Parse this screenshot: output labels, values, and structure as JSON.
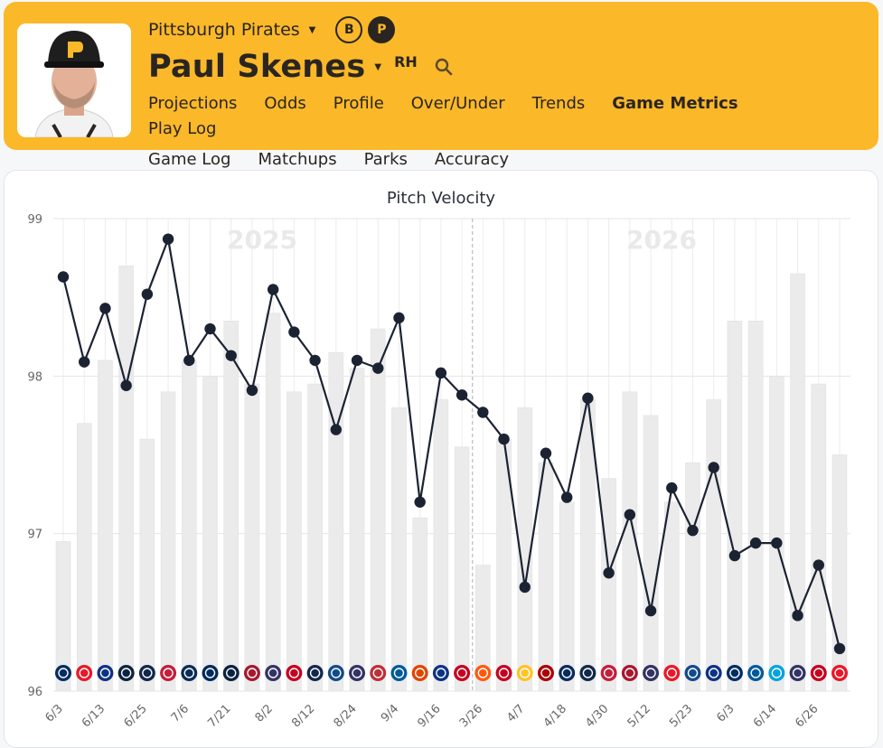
{
  "header": {
    "team_name": "Pittsburgh Pirates",
    "player_name": "Paul Skenes",
    "handedness": "RH",
    "toggle_b": "B",
    "toggle_p": "P",
    "nav": [
      "Projections",
      "Odds",
      "Profile",
      "Over/Under",
      "Trends",
      "Game Metrics",
      "Play Log",
      "Game Log",
      "Matchups",
      "Parks",
      "Accuracy"
    ],
    "active_nav": "Game Metrics"
  },
  "colors": {
    "brand": "#fbb829",
    "dark": "#2a2520",
    "line": "#1b2333",
    "bar": "#e9e9e9"
  },
  "chart_data": {
    "type": "line",
    "title": "Pitch Velocity",
    "season_labels": [
      "2025",
      "2026"
    ],
    "ylim": [
      96,
      99
    ],
    "yticks": [
      "96",
      "97",
      "98",
      "99"
    ],
    "x_tick_labels": [
      "6/3",
      "6/13",
      "6/25",
      "7/6",
      "7/21",
      "8/2",
      "8/12",
      "8/24",
      "9/4",
      "9/16",
      "3/26",
      "4/7",
      "4/18",
      "4/30",
      "5/12",
      "5/23",
      "6/3",
      "6/14",
      "6/26"
    ],
    "line_values": [
      98.63,
      98.09,
      98.43,
      97.94,
      98.52,
      98.87,
      98.1,
      98.3,
      98.13,
      97.91,
      98.55,
      98.28,
      98.1,
      97.66,
      98.1,
      98.05,
      98.37,
      97.2,
      98.02,
      97.88,
      97.77,
      97.6,
      96.66,
      97.51,
      97.23,
      97.86,
      96.75,
      97.12,
      96.51,
      97.29,
      97.02,
      97.42,
      96.86,
      96.94,
      96.94,
      96.48,
      96.8,
      96.27
    ],
    "bar_values": [
      96.95,
      97.7,
      98.1,
      98.7,
      97.6,
      97.9,
      98.1,
      98.0,
      98.35,
      97.95,
      98.4,
      97.9,
      97.95,
      98.15,
      98.05,
      98.3,
      97.8,
      97.1,
      97.85,
      97.55,
      96.8,
      97.6,
      97.8,
      97.45,
      97.2,
      97.85,
      97.35,
      97.9,
      97.75,
      97.2,
      97.45,
      97.85,
      98.35,
      98.35,
      98.0,
      98.65,
      97.95,
      97.5
    ],
    "opponents": [
      "HOU",
      "PHI",
      "CHC",
      "DET",
      "MIL",
      "STL",
      "SEA",
      "MIN",
      "DET",
      "ARI",
      "COL",
      "CIN",
      "MIL",
      "TOR",
      "COL",
      "BOS",
      "LAD",
      "BAL",
      "CHC",
      "CIN",
      "NYM",
      "CIN",
      "SD",
      "WSH",
      "TB",
      "MIL",
      "STL",
      "ARI",
      "COL",
      "PHI",
      "TOR",
      "CHC",
      "HOU",
      "LAD",
      "MIA",
      "COL",
      "CIN",
      "PHI"
    ],
    "season_split_after_index": 19
  }
}
